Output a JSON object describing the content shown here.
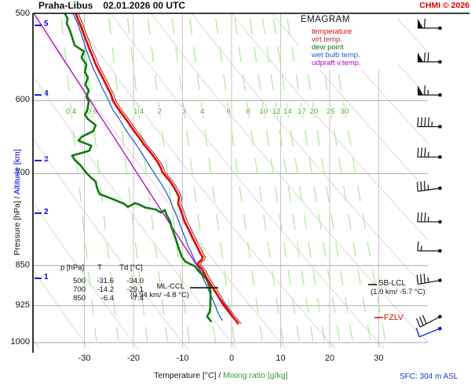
{
  "header": {
    "station": "Praha-Libus",
    "datetime": "02.01.2026 00 UTC",
    "copyright": "CHMI © 2026"
  },
  "axes": {
    "x_label": "Temperature [°C]",
    "x_sep": "/",
    "x_label2": "Mixing ratio [g/kg]",
    "y_label": "Pressure [hPa]",
    "y_sep": "/",
    "y_label2": "Altitude [km]",
    "x_ticks": [
      -30,
      -20,
      -10,
      0,
      10,
      20,
      30
    ],
    "p_ticks": [
      500,
      600,
      700,
      850,
      925,
      1000
    ],
    "alt_ticks": [
      {
        "km": "5",
        "p": 512
      },
      {
        "km": "4",
        "p": 593
      },
      {
        "km": "3",
        "p": 681
      },
      {
        "km": "2",
        "p": 761
      },
      {
        "km": "1",
        "p": 873
      }
    ]
  },
  "table": {
    "headers": [
      "p [hPa]",
      "T",
      "Td [°C]"
    ],
    "rows": [
      [
        "500",
        "-31.6",
        "-34.0"
      ],
      [
        "700",
        "-14.2",
        "-29.1"
      ],
      [
        "850",
        "-6.4",
        "-7.4"
      ]
    ]
  },
  "annotations": {
    "ml_ccl": {
      "label": "ML-CCL",
      "detail": "(0.94 km/ -4.8 °C)"
    },
    "sb_lcl": {
      "label": "SB-LCL",
      "detail": "(1.0 km/ -5.7 °C)"
    },
    "fzlv": {
      "label": "FZLV"
    },
    "sfc": "SFC: 304 m ASL"
  },
  "chart_data": {
    "type": "line",
    "title": "EMAGRAM",
    "x_range_c": [
      -40,
      30
    ],
    "p_range_hpa": [
      500,
      1000
    ],
    "grid": {
      "isotherm_color": "#c6c6c6",
      "pressure_line_color": "#a9a9a9",
      "dry_adiabat_color": "#d8d8d8"
    },
    "mixing_ratio": {
      "color": "#a5e692",
      "label_color": "#4cae32",
      "values": [
        "0.4",
        "0.6",
        "1",
        "1.4",
        "2",
        "3",
        "4",
        "6",
        "8",
        "10",
        "12",
        "14",
        "17",
        "20",
        "25",
        "30"
      ]
    },
    "series": [
      {
        "name": "temperature",
        "color": "#e00000",
        "width": 2.6,
        "points": [
          [
            500,
            -31.7
          ],
          [
            507,
            -31.2
          ],
          [
            513,
            -30.7
          ],
          [
            522,
            -30.1
          ],
          [
            529,
            -29.6
          ],
          [
            538,
            -29.0
          ],
          [
            547,
            -28.3
          ],
          [
            556,
            -27.7
          ],
          [
            565,
            -26.9
          ],
          [
            574,
            -26.1
          ],
          [
            584,
            -25.3
          ],
          [
            592,
            -24.6
          ],
          [
            600,
            -24.2
          ],
          [
            608,
            -23.4
          ],
          [
            615,
            -22.6
          ],
          [
            621,
            -21.9
          ],
          [
            628,
            -21.1
          ],
          [
            636,
            -20.3
          ],
          [
            643,
            -19.5
          ],
          [
            650,
            -18.7
          ],
          [
            659,
            -17.8
          ],
          [
            667,
            -16.8
          ],
          [
            676,
            -15.8
          ],
          [
            684,
            -15.0
          ],
          [
            692,
            -14.4
          ],
          [
            698,
            -14.1
          ],
          [
            704,
            -13.4
          ],
          [
            711,
            -12.6
          ],
          [
            720,
            -11.8
          ],
          [
            728,
            -11.2
          ],
          [
            736,
            -10.7
          ],
          [
            746,
            -10.9
          ],
          [
            755,
            -10.4
          ],
          [
            762,
            -10.1
          ],
          [
            774,
            -9.6
          ],
          [
            782,
            -9.1
          ],
          [
            792,
            -8.5
          ],
          [
            801,
            -8.0
          ],
          [
            811,
            -7.4
          ],
          [
            819,
            -6.9
          ],
          [
            828,
            -6.4
          ],
          [
            835,
            -5.9
          ],
          [
            840,
            -6.1
          ],
          [
            844,
            -6.7
          ],
          [
            848,
            -6.9
          ],
          [
            853,
            -6.4
          ],
          [
            858,
            -5.9
          ],
          [
            867,
            -5.4
          ],
          [
            874,
            -5.0
          ],
          [
            881,
            -4.5
          ],
          [
            888,
            -4.0
          ],
          [
            897,
            -3.4
          ],
          [
            907,
            -2.7
          ],
          [
            917,
            -2.1
          ],
          [
            928,
            -1.3
          ],
          [
            938,
            -0.5
          ],
          [
            948,
            0.3
          ],
          [
            956,
            1.0
          ],
          [
            960,
            1.3
          ]
        ]
      },
      {
        "name": "virt.temp.",
        "color": "#b03030",
        "width": 1.1,
        "derived_from": "temperature",
        "offset_c": 0.55
      },
      {
        "name": "dew point",
        "color": "#0d7d0d",
        "width": 2.6,
        "points": [
          [
            500,
            -33.9
          ],
          [
            505,
            -33.4
          ],
          [
            510,
            -33.6
          ],
          [
            517,
            -33.0
          ],
          [
            525,
            -32.5
          ],
          [
            534,
            -32.0
          ],
          [
            541,
            -30.1
          ],
          [
            548,
            -30.6
          ],
          [
            556,
            -29.6
          ],
          [
            565,
            -29.9
          ],
          [
            572,
            -29.3
          ],
          [
            580,
            -29.8
          ],
          [
            588,
            -29.1
          ],
          [
            595,
            -29.6
          ],
          [
            601,
            -29.1
          ],
          [
            612,
            -29.4
          ],
          [
            618,
            -29.9
          ],
          [
            624,
            -29.3
          ],
          [
            632,
            -27.7
          ],
          [
            640,
            -28.2
          ],
          [
            648,
            -30.6
          ],
          [
            653,
            -31.2
          ],
          [
            660,
            -28.6
          ],
          [
            667,
            -29.0
          ],
          [
            674,
            -32.5
          ],
          [
            680,
            -32.0
          ],
          [
            687,
            -30.9
          ],
          [
            699,
            -29.6
          ],
          [
            707,
            -28.5
          ],
          [
            712,
            -27.7
          ],
          [
            722,
            -27.4
          ],
          [
            731,
            -26.9
          ],
          [
            737,
            -24.8
          ],
          [
            741,
            -23.5
          ],
          [
            746,
            -21.9
          ],
          [
            751,
            -21.1
          ],
          [
            745,
            -19.7
          ],
          [
            747,
            -18.9
          ],
          [
            752,
            -17.6
          ],
          [
            755,
            -15.5
          ],
          [
            760,
            -14.4
          ],
          [
            756,
            -13.6
          ],
          [
            763,
            -13.3
          ],
          [
            775,
            -12.5
          ],
          [
            785,
            -12.2
          ],
          [
            796,
            -11.7
          ],
          [
            808,
            -11.2
          ],
          [
            821,
            -10.7
          ],
          [
            835,
            -10.1
          ],
          [
            843,
            -9.4
          ],
          [
            847,
            -8.5
          ],
          [
            851,
            -7.5
          ],
          [
            860,
            -6.7
          ],
          [
            867,
            -5.9
          ],
          [
            875,
            -5.1
          ],
          [
            885,
            -4.6
          ],
          [
            897,
            -4.3
          ],
          [
            911,
            -4.3
          ],
          [
            926,
            -4.3
          ],
          [
            938,
            -4.5
          ],
          [
            946,
            -5.0
          ],
          [
            951,
            -4.6
          ],
          [
            956,
            -4.2
          ]
        ]
      },
      {
        "name": "wet bulb temp.",
        "color": "#2a5fd0",
        "width": 1.3,
        "points": [
          [
            500,
            -32.2
          ],
          [
            510,
            -31.4
          ],
          [
            522,
            -30.6
          ],
          [
            536,
            -29.8
          ],
          [
            549,
            -29.0
          ],
          [
            561,
            -28.2
          ],
          [
            573,
            -27.2
          ],
          [
            584,
            -26.4
          ],
          [
            593,
            -25.6
          ],
          [
            601,
            -25.0
          ],
          [
            612,
            -24.2
          ],
          [
            619,
            -23.4
          ],
          [
            627,
            -22.6
          ],
          [
            636,
            -21.8
          ],
          [
            644,
            -21.0
          ],
          [
            653,
            -20.0
          ],
          [
            663,
            -19.0
          ],
          [
            673,
            -18.1
          ],
          [
            682,
            -17.3
          ],
          [
            691,
            -16.5
          ],
          [
            699,
            -15.8
          ],
          [
            708,
            -15.0
          ],
          [
            717,
            -14.2
          ],
          [
            727,
            -13.4
          ],
          [
            736,
            -12.8
          ],
          [
            747,
            -12.2
          ],
          [
            760,
            -11.5
          ],
          [
            771,
            -10.9
          ],
          [
            782,
            -10.4
          ],
          [
            793,
            -9.9
          ],
          [
            803,
            -9.4
          ],
          [
            814,
            -9.0
          ],
          [
            825,
            -8.3
          ],
          [
            835,
            -7.8
          ],
          [
            843,
            -7.4
          ],
          [
            848,
            -7.0
          ],
          [
            857,
            -6.6
          ],
          [
            867,
            -6.1
          ],
          [
            877,
            -5.6
          ],
          [
            886,
            -5.1
          ],
          [
            897,
            -4.6
          ],
          [
            910,
            -4.0
          ],
          [
            923,
            -3.4
          ],
          [
            936,
            -2.9
          ],
          [
            946,
            -2.4
          ],
          [
            954,
            -1.9
          ]
        ]
      },
      {
        "name": "udpraft v.temp.",
        "color": "#b400c8",
        "width": 1.3,
        "points": [
          [
            500,
            -40.2
          ],
          [
            848,
            -7.2
          ],
          [
            873,
            -5.3
          ],
          [
            954,
            0.9
          ]
        ]
      }
    ],
    "wind_barbs": [
      {
        "p": 515,
        "kt": 60
      },
      {
        "p": 553,
        "kt": 70
      },
      {
        "p": 593,
        "kt": 65
      },
      {
        "p": 634,
        "kt": 45
      },
      {
        "p": 676,
        "kt": 35
      },
      {
        "p": 722,
        "kt": 35,
        "tilt": -8
      },
      {
        "p": 775,
        "kt": 35
      },
      {
        "p": 824,
        "kt": 15
      },
      {
        "p": 877,
        "kt": 35,
        "tilt": -10
      },
      {
        "p": 947,
        "kt": 30,
        "tilt": -28
      },
      {
        "p": 971,
        "kt": 10,
        "tilt": -22,
        "color": "#0011cc"
      }
    ]
  }
}
